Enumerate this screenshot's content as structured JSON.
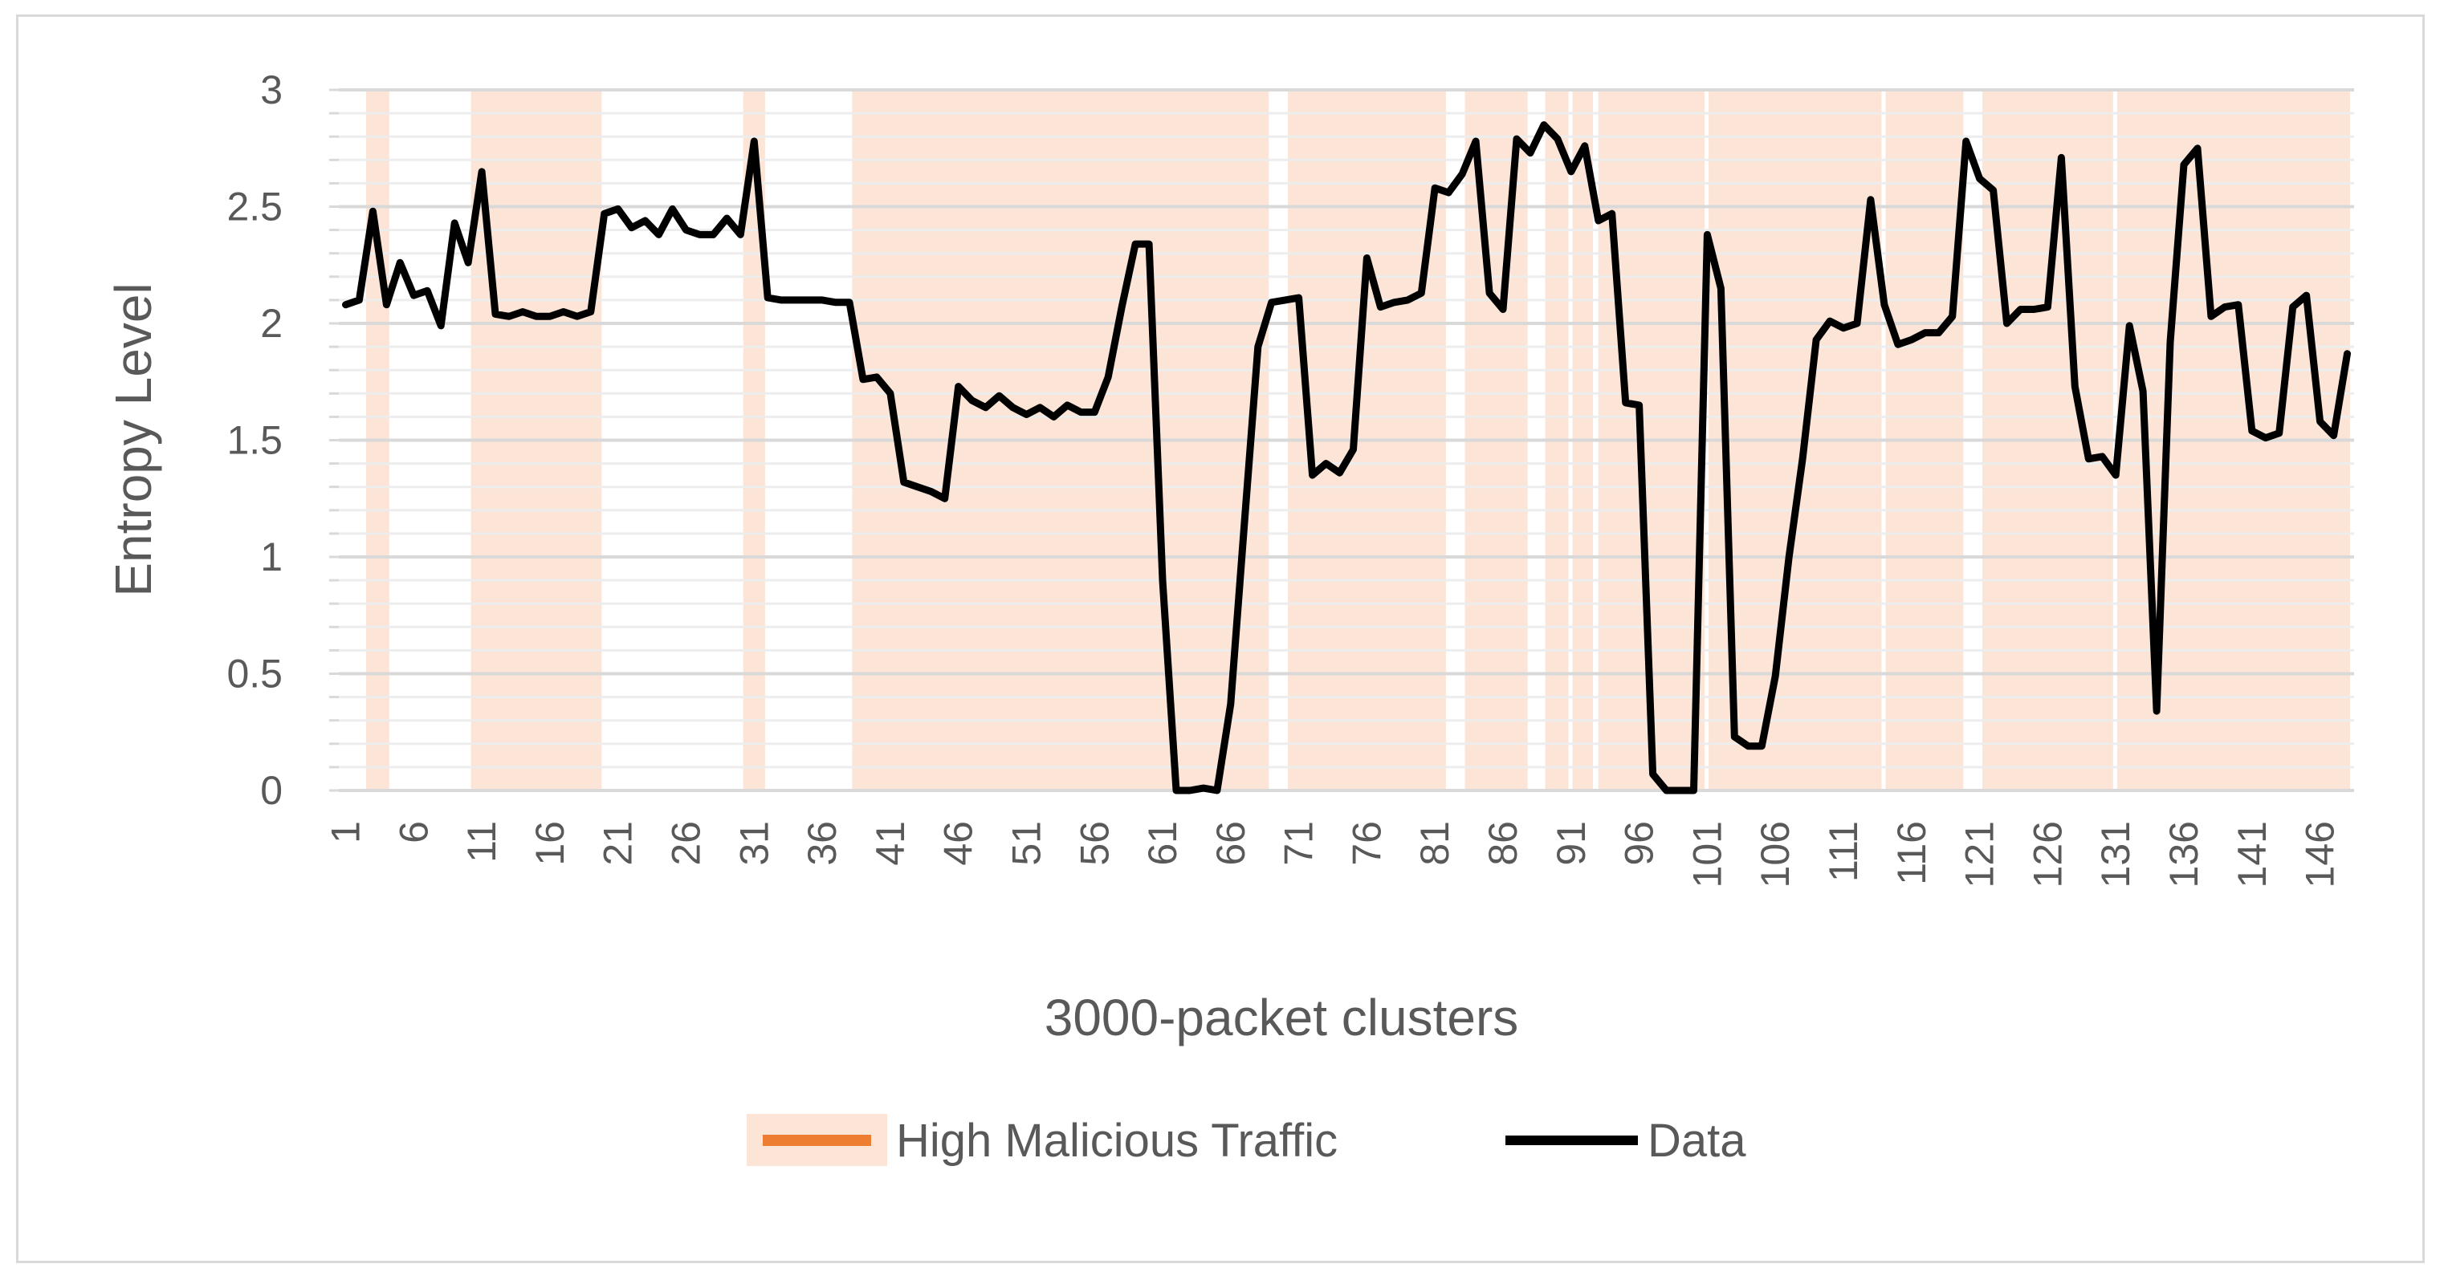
{
  "chart_data": {
    "type": "line",
    "xlabel": "3000-packet clusters",
    "ylabel": "Entropy Level",
    "ylim": [
      0,
      3
    ],
    "yticks": [
      "0",
      "0.5",
      "1",
      "1.5",
      "2",
      "2.5",
      "3"
    ],
    "xticks": [
      "1",
      "6",
      "11",
      "16",
      "21",
      "26",
      "31",
      "36",
      "41",
      "46",
      "51",
      "56",
      "61",
      "66",
      "71",
      "76",
      "81",
      "86",
      "91",
      "96",
      "101",
      "106",
      "111",
      "116",
      "121",
      "126",
      "131",
      "136",
      "141",
      "146"
    ],
    "x_range": [
      1,
      148
    ],
    "grid": "horizontal",
    "legend_position": "bottom",
    "colors": {
      "data_line": "#000000",
      "highlight_band": "#fce4d6",
      "highlight_legend": "#ed7d31"
    },
    "highlight": {
      "name": "High Malicious Traffic",
      "bands": [
        [
          2.5,
          4.2
        ],
        [
          10.2,
          19.8
        ],
        [
          30.2,
          31.8
        ],
        [
          38.2,
          68.8
        ],
        [
          70.2,
          81.8
        ],
        [
          83.2,
          87.8
        ],
        [
          89.1,
          90.8
        ],
        [
          91.1,
          92.6
        ],
        [
          93.0,
          100.8
        ],
        [
          101.1,
          113.8
        ],
        [
          114.1,
          119.8
        ],
        [
          121.2,
          130.8
        ],
        [
          131.1,
          148.2
        ]
      ]
    },
    "series": [
      {
        "name": "Data",
        "x": [
          1,
          2,
          3,
          4,
          5,
          6,
          7,
          8,
          9,
          10,
          11,
          12,
          13,
          14,
          15,
          16,
          17,
          18,
          19,
          20,
          21,
          22,
          23,
          24,
          25,
          26,
          27,
          28,
          29,
          30,
          31,
          32,
          33,
          34,
          35,
          36,
          37,
          38,
          39,
          40,
          41,
          42,
          43,
          44,
          45,
          46,
          47,
          48,
          49,
          50,
          51,
          52,
          53,
          54,
          55,
          56,
          57,
          58,
          59,
          60,
          61,
          62,
          63,
          64,
          65,
          66,
          67,
          68,
          69,
          70,
          71,
          72,
          73,
          74,
          75,
          76,
          77,
          78,
          79,
          80,
          81,
          82,
          83,
          84,
          85,
          86,
          87,
          88,
          89,
          90,
          91,
          92,
          93,
          94,
          95,
          96,
          97,
          98,
          99,
          100,
          101,
          102,
          103,
          104,
          105,
          106,
          107,
          108,
          109,
          110,
          111,
          112,
          113,
          114,
          115,
          116,
          117,
          118,
          119,
          120,
          121,
          122,
          123,
          124,
          125,
          126,
          127,
          128,
          129,
          130,
          131,
          132,
          133,
          134,
          135,
          136,
          137,
          138,
          139,
          140,
          141,
          142,
          143,
          144,
          145,
          146,
          147,
          148
        ],
        "values": [
          2.08,
          2.1,
          2.48,
          2.08,
          2.26,
          2.12,
          2.14,
          1.99,
          2.43,
          2.26,
          2.65,
          2.04,
          2.03,
          2.05,
          2.03,
          2.03,
          2.05,
          2.03,
          2.05,
          2.47,
          2.49,
          2.41,
          2.44,
          2.38,
          2.49,
          2.4,
          2.38,
          2.38,
          2.45,
          2.38,
          2.78,
          2.11,
          2.1,
          2.1,
          2.1,
          2.1,
          2.09,
          2.09,
          1.76,
          1.77,
          1.7,
          1.32,
          1.3,
          1.28,
          1.25,
          1.73,
          1.67,
          1.64,
          1.69,
          1.64,
          1.61,
          1.64,
          1.6,
          1.65,
          1.62,
          1.62,
          1.77,
          2.07,
          2.34,
          2.34,
          0.9,
          0.0,
          0.0,
          0.01,
          0.0,
          0.37,
          1.14,
          1.9,
          2.09,
          2.1,
          2.11,
          1.35,
          1.4,
          1.36,
          1.46,
          2.28,
          2.07,
          2.09,
          2.1,
          2.13,
          2.58,
          2.56,
          2.64,
          2.78,
          2.13,
          2.06,
          2.79,
          2.73,
          2.85,
          2.79,
          2.65,
          2.76,
          2.44,
          2.47,
          1.66,
          1.65,
          0.07,
          0.0,
          0.0,
          0.0,
          2.38,
          2.15,
          0.23,
          0.19,
          0.19,
          0.49,
          1.0,
          1.42,
          1.93,
          2.01,
          1.98,
          2.0,
          2.53,
          2.08,
          1.91,
          1.93,
          1.96,
          1.96,
          2.03,
          2.78,
          2.62,
          2.57,
          2.0,
          2.06,
          2.06,
          2.07,
          2.71,
          1.73,
          1.42,
          1.43,
          1.35,
          1.99,
          1.71,
          0.34,
          1.92,
          2.68,
          2.75,
          2.03,
          2.07,
          2.08,
          1.54,
          1.51,
          1.53,
          2.07,
          2.12,
          1.58,
          1.52,
          1.87
        ]
      }
    ]
  }
}
